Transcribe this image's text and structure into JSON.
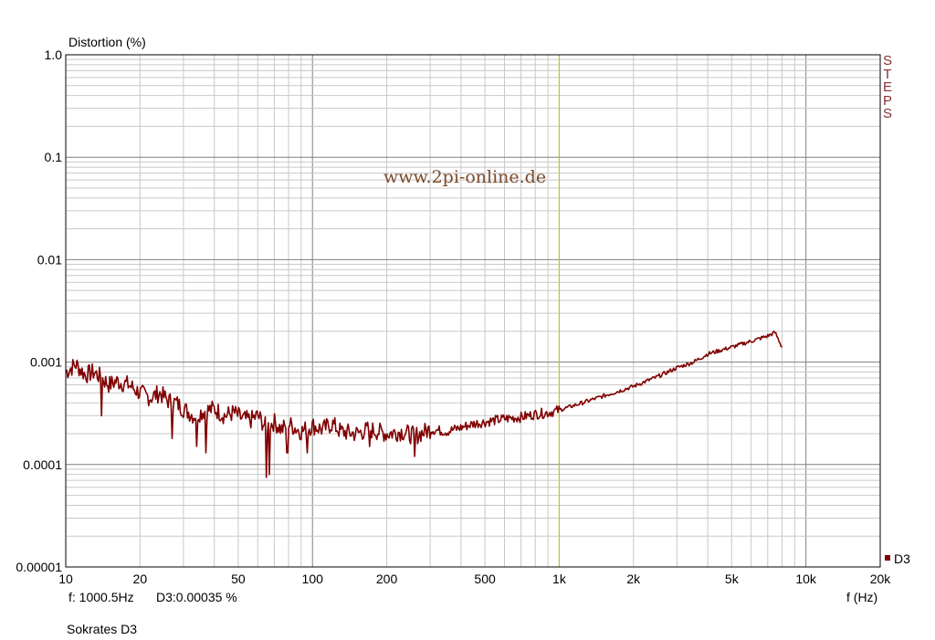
{
  "chart_data": {
    "type": "line",
    "title": "",
    "ylabel": "Distortion (%)",
    "xlabel": "f (Hz)",
    "x_scale": "log",
    "y_scale": "log",
    "xlim": [
      10,
      20000
    ],
    "ylim": [
      1e-05,
      1.0
    ],
    "grid": true,
    "legend": "right-bottom",
    "x_ticks": [
      "10",
      "20",
      "50",
      "100",
      "200",
      "500",
      "1k",
      "2k",
      "5k",
      "10k",
      "20k"
    ],
    "y_ticks": [
      "1.0",
      "0.1",
      "0.01",
      "0.001",
      "0.0001",
      "0.00001"
    ],
    "marker_frequency": 1000,
    "series": [
      {
        "name": "D3",
        "color": "#800000",
        "x": [
          10,
          11,
          12,
          13,
          14,
          15,
          16,
          18,
          20,
          22,
          24,
          26,
          28,
          30,
          33,
          36,
          40,
          44,
          48,
          52,
          56,
          60,
          65,
          70,
          75,
          80,
          90,
          100,
          110,
          120,
          130,
          150,
          170,
          200,
          230,
          260,
          300,
          350,
          400,
          450,
          500,
          600,
          700,
          800,
          900,
          1000,
          1200,
          1400,
          1700,
          2000,
          2500,
          3000,
          3500,
          4000,
          5000,
          6000,
          7000,
          7500,
          8000
        ],
        "y": [
          0.0008,
          0.00095,
          0.00075,
          0.0008,
          0.0007,
          0.0006,
          0.00065,
          0.0006,
          0.0005,
          0.00045,
          0.0005,
          0.00042,
          0.0004,
          0.00035,
          0.0003,
          0.00033,
          0.00035,
          0.0003,
          0.00032,
          0.00028,
          0.00027,
          0.0003,
          0.00023,
          0.00026,
          0.00022,
          0.00025,
          0.00021,
          0.00024,
          0.00022,
          0.00025,
          0.00021,
          0.0002,
          0.00022,
          0.0002,
          0.00021,
          0.00019,
          0.00022,
          0.00021,
          0.00023,
          0.00025,
          0.00026,
          0.00028,
          0.00029,
          0.00031,
          0.00032,
          0.00034,
          0.00039,
          0.00044,
          0.00051,
          0.00058,
          0.00072,
          0.00088,
          0.001,
          0.0012,
          0.0014,
          0.0016,
          0.0018,
          0.00195,
          0.0014
        ]
      }
    ],
    "dips": [
      {
        "x": 14,
        "y": 0.0003
      },
      {
        "x": 27,
        "y": 0.00018
      },
      {
        "x": 34,
        "y": 0.00015
      },
      {
        "x": 37,
        "y": 0.00013
      },
      {
        "x": 65,
        "y": 7.5e-05
      },
      {
        "x": 67,
        "y": 8e-05
      },
      {
        "x": 79,
        "y": 0.00013
      },
      {
        "x": 95,
        "y": 0.00013
      },
      {
        "x": 170,
        "y": 0.00015
      },
      {
        "x": 260,
        "y": 0.00012
      }
    ]
  },
  "watermark": "www.2pi-online.de",
  "side_label": "STEPS",
  "legend_label": "D3",
  "cursor_readout": {
    "freq": "f: 1000.5Hz",
    "value": "D3:0.00035 %"
  },
  "caption": "Sokrates D3",
  "colors": {
    "series": "#800000",
    "marker": "#c8c800",
    "grid": "#c8c8c8",
    "decade_grid": "#808080",
    "watermark": "#7a4a2a",
    "side_label": "#8b3030"
  }
}
